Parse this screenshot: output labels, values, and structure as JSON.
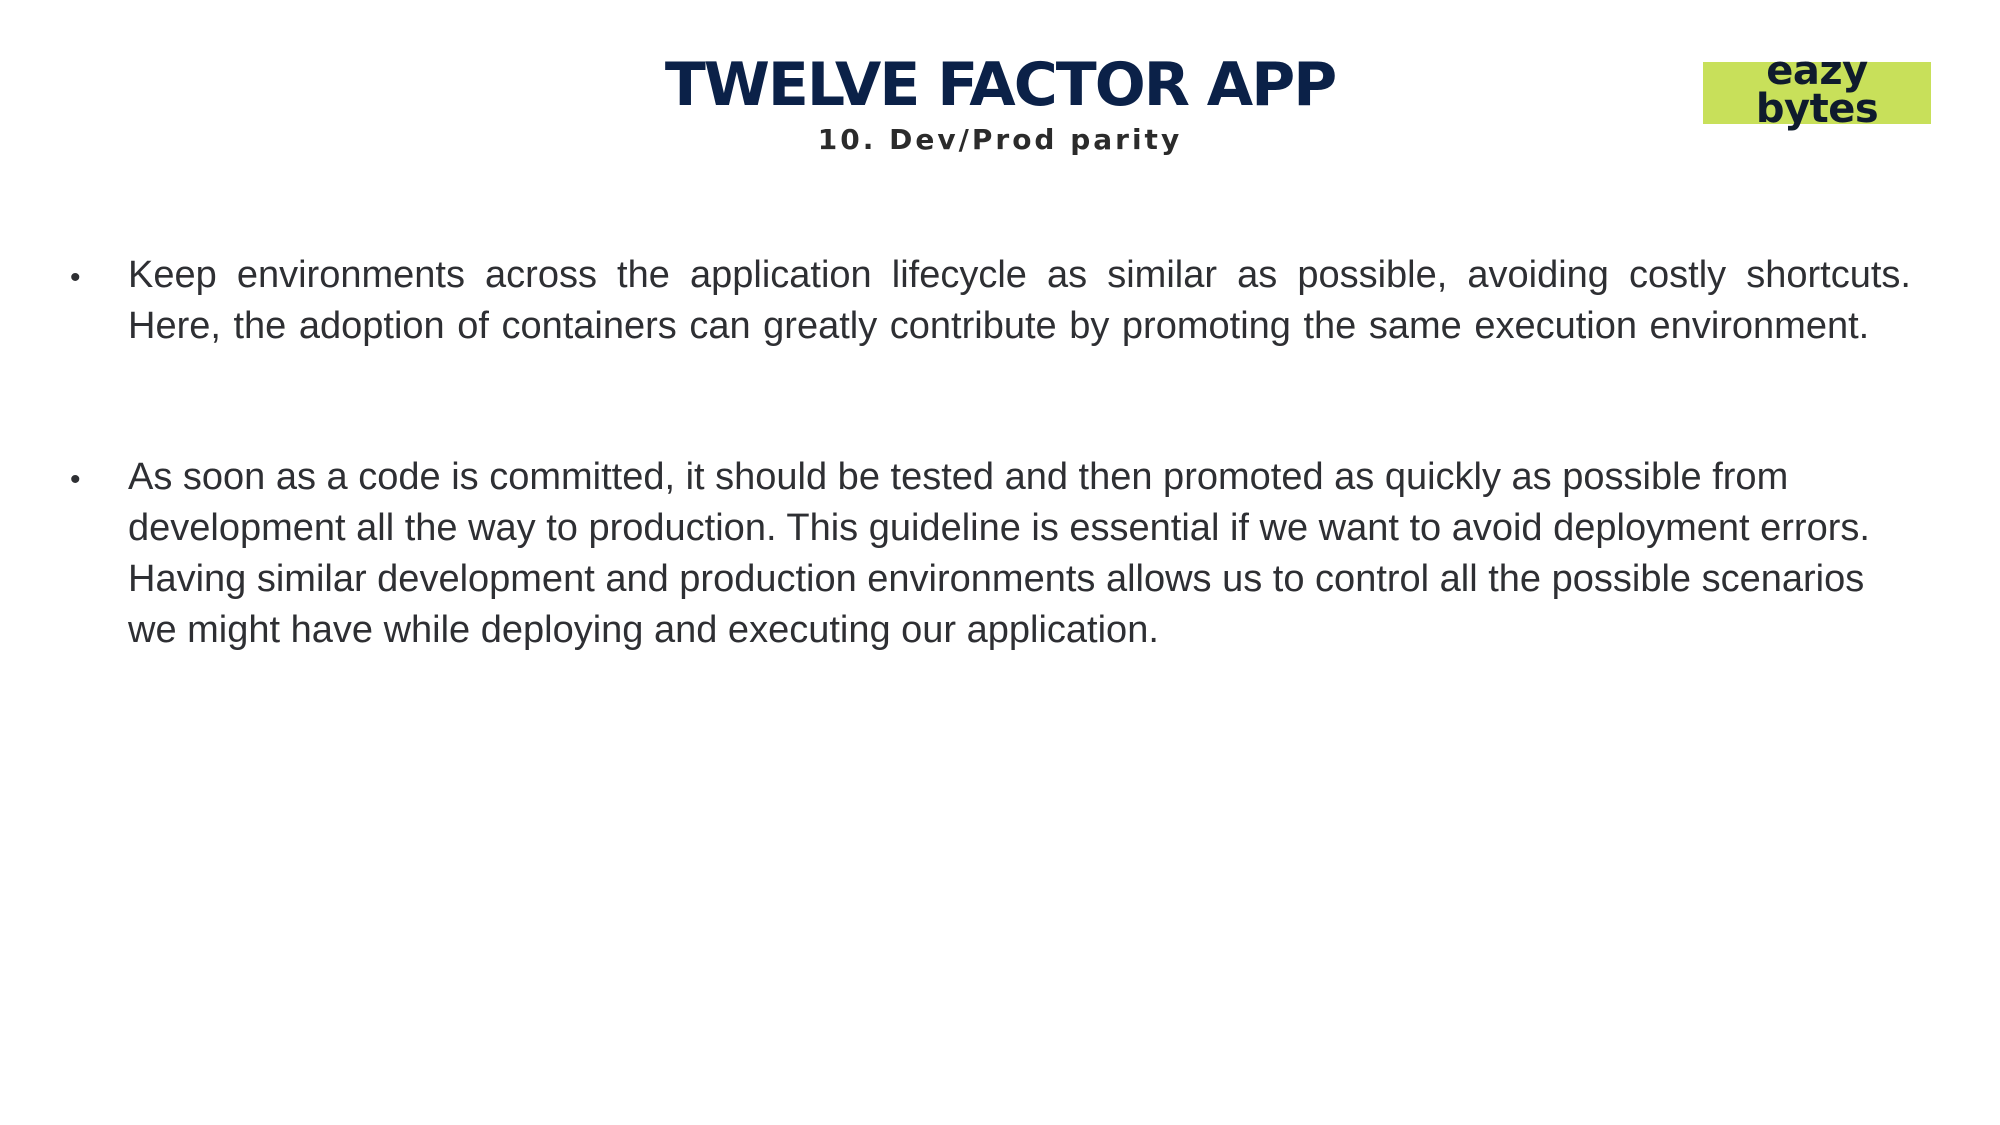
{
  "header": {
    "title": "TWELVE FACTOR APP",
    "subtitle": "10. Dev/Prod parity"
  },
  "logo": {
    "line1": "eazy",
    "line2": "bytes",
    "background_color": "#c8e05a"
  },
  "bullets": [
    {
      "marker": "•",
      "text": "Keep environments across the application lifecycle as similar as possible, avoiding costly shortcuts. Here, the adoption of containers can greatly contribute by promoting the same execution environment."
    },
    {
      "marker": "•",
      "text": "As soon as a code is committed, it should be tested and then promoted as quickly as possible from development all the way to production. This guideline is essential if we want to avoid deployment errors. Having similar development and production environments allows us to control all the possible scenarios we might have while deploying and executing our application."
    }
  ],
  "colors": {
    "title": "#0b2148",
    "body_text": "#2e2f33",
    "accent": "#c8e05a"
  }
}
